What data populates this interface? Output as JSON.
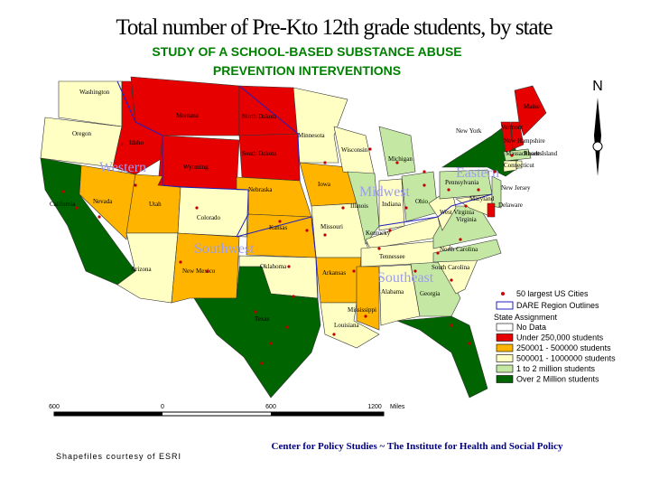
{
  "header": {
    "title": "Total number of Pre-Kto 12th grade students, by state",
    "subtitle": [
      "STUDY OF A SCHOOL-BASED SUBSTANCE ABUSE",
      "PREVENTION INTERVENTIONS"
    ]
  },
  "north": "N",
  "regions": [
    "Western",
    "Southwest",
    "Midwest",
    "Eastern",
    "Southeast"
  ],
  "states": [
    {
      "name": "Washington",
      "category": 3
    },
    {
      "name": "Oregon",
      "category": 3
    },
    {
      "name": "California",
      "category": 5
    },
    {
      "name": "Nevada",
      "category": 2
    },
    {
      "name": "Idaho",
      "category": 1
    },
    {
      "name": "Montana",
      "category": 1
    },
    {
      "name": "Wyoming",
      "category": 1
    },
    {
      "name": "Utah",
      "category": 2
    },
    {
      "name": "Colorado",
      "category": 3
    },
    {
      "name": "Arizona",
      "category": 3
    },
    {
      "name": "New Mexico",
      "category": 2
    },
    {
      "name": "North Dakota",
      "category": 1
    },
    {
      "name": "South Dakota",
      "category": 1
    },
    {
      "name": "Nebraska",
      "category": 2
    },
    {
      "name": "Kansas",
      "category": 2
    },
    {
      "name": "Oklahoma",
      "category": 3
    },
    {
      "name": "Texas",
      "category": 5
    },
    {
      "name": "Minnesota",
      "category": 3
    },
    {
      "name": "Iowa",
      "category": 2
    },
    {
      "name": "Missouri",
      "category": 3
    },
    {
      "name": "Arkansas",
      "category": 2
    },
    {
      "name": "Louisiana",
      "category": 3
    },
    {
      "name": "Wisconsin",
      "category": 3
    },
    {
      "name": "Illinois",
      "category": 4
    },
    {
      "name": "Michigan",
      "category": 4
    },
    {
      "name": "Indiana",
      "category": 3
    },
    {
      "name": "Ohio",
      "category": 4
    },
    {
      "name": "Kentucky",
      "category": 3
    },
    {
      "name": "Tennessee",
      "category": 3
    },
    {
      "name": "Mississippi",
      "category": 2
    },
    {
      "name": "Alabama",
      "category": 3
    },
    {
      "name": "Georgia",
      "category": 4
    },
    {
      "category": 5
    },
    {
      "name": "South Carolina",
      "category": 3
    },
    {
      "name": "North Carolina",
      "category": 4
    },
    {
      "name": "Virginia",
      "category": 4
    },
    {
      "name": "West Virginia",
      "category": 3
    },
    {
      "name": "Pennsylvania",
      "category": 4
    },
    {
      "name": "New York",
      "category": 5
    },
    {
      "name": "Maryland",
      "category": 3
    },
    {
      "name": "New Jersey",
      "category": 4
    },
    {
      "name": "Delaware",
      "category": 1
    },
    {
      "name": "Vermont",
      "category": 1
    },
    {
      "name": "New Hampshire",
      "category": 1
    },
    {
      "name": "Maine",
      "category": 1
    },
    {
      "name": "Massachusetts",
      "category": 4
    },
    {
      "name": "Connecticut",
      "category": 3
    },
    {
      "name": "Rhode Island",
      "category": 3
    }
  ],
  "legend": {
    "cities": "50 largest US Cities",
    "outlines": "DARE Region Outlines",
    "heading": "State Assignment",
    "categories": [
      {
        "label": "No Data",
        "color": "#ffffff"
      },
      {
        "label": "Under 250,000 students",
        "color": "#e60000"
      },
      {
        "label": "250001 - 500000 students",
        "color": "#ffb400"
      },
      {
        "label": "500001 - 1000000 students",
        "color": "#ffffc4"
      },
      {
        "label": "1 to 2 million students",
        "color": "#c4e8a4"
      },
      {
        "label": "Over 2 Million students",
        "color": "#006400"
      }
    ]
  },
  "scale": [
    "600",
    "0",
    "600",
    "1200",
    "Miles"
  ],
  "footer": {
    "credit": "Center for Policy Studies  ~  The Institute for Health and Social Policy",
    "source": "Shapefiles courtesy of ESRI"
  }
}
